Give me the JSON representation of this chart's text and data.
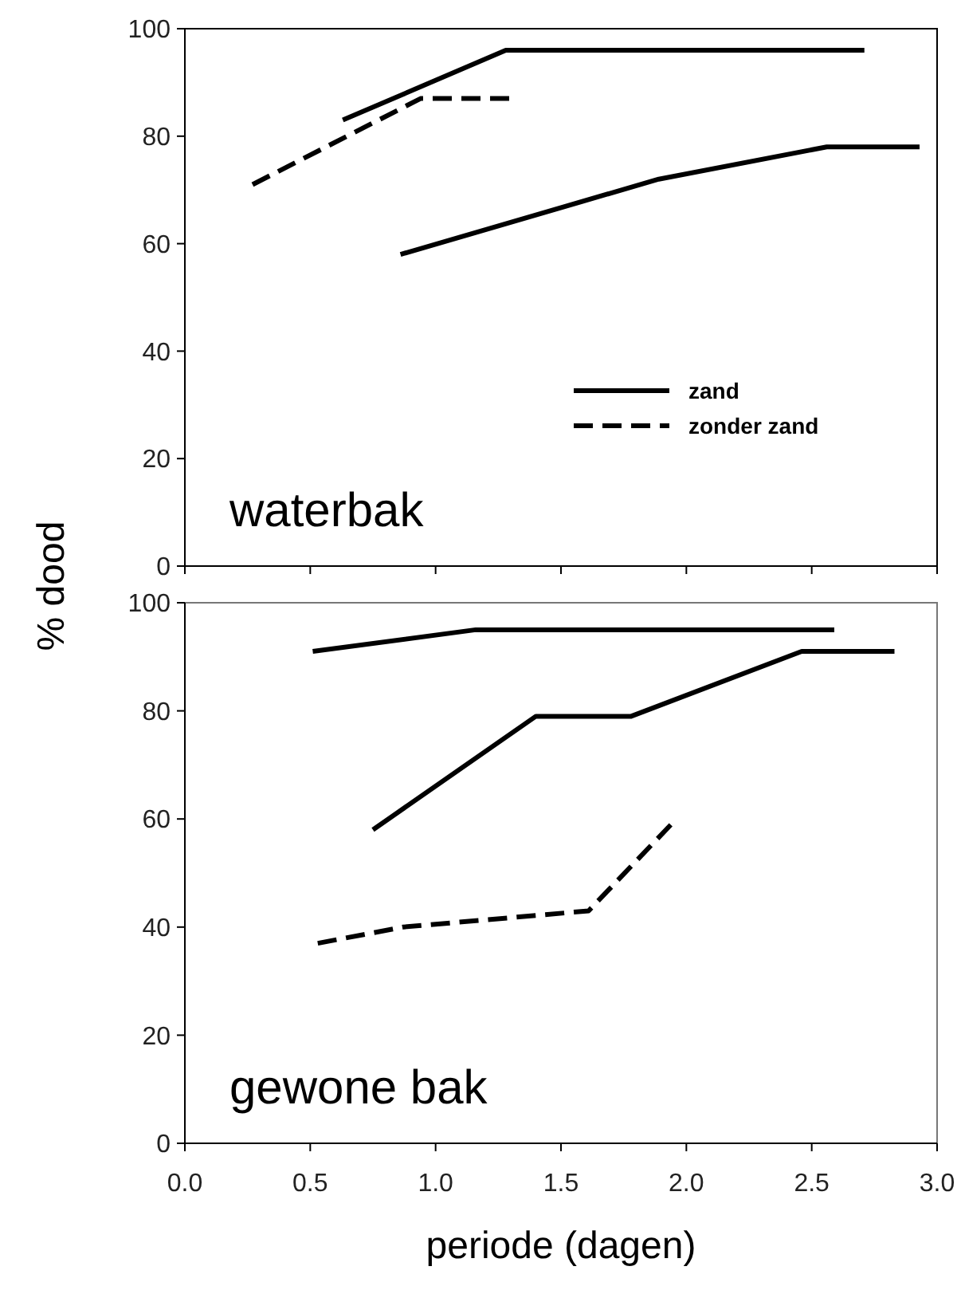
{
  "chart_data": [
    {
      "type": "line",
      "ylabel": "% dood",
      "annotations": [
        "waterbak"
      ],
      "xlim": [
        0,
        3
      ],
      "xticks": [
        {
          "value": 0,
          "label": null
        },
        {
          "value": 0.5,
          "label": null
        },
        {
          "value": 1,
          "label": null
        },
        {
          "value": 1.5,
          "label": null
        },
        {
          "value": 2,
          "label": null
        },
        {
          "value": 2.5,
          "label": null
        },
        {
          "value": 3,
          "label": null
        }
      ],
      "ylim": [
        0,
        100
      ],
      "yticks": [
        0,
        20,
        40,
        60,
        80,
        100
      ],
      "tick_labels": "y",
      "legend": "right",
      "grid": false,
      "marker": "none",
      "series": [
        {
          "name": "zand",
          "color": "#000000",
          "line_style": "solid",
          "x": [
            0.63,
            1.28,
            2.71
          ],
          "values": [
            83,
            96,
            96
          ]
        },
        {
          "color": "#000000",
          "line_style": "solid",
          "x": [
            0.86,
            1.89,
            2.56,
            2.93
          ],
          "values": [
            58,
            72,
            78,
            78
          ]
        },
        {
          "name": "zonder zand",
          "color": "#000000",
          "line_style": "dashed",
          "x": [
            0.27,
            0.94,
            1.3
          ],
          "values": [
            71,
            87,
            87
          ]
        }
      ]
    },
    {
      "type": "line",
      "xlabel": "periode (dagen)",
      "annotations": [
        "gewone bak"
      ],
      "xlim": [
        0,
        3
      ],
      "xticks": [
        {
          "value": 0,
          "label": "0.0"
        },
        {
          "value": 0.5,
          "label": "0.5"
        },
        {
          "value": 1,
          "label": "1.0"
        },
        {
          "value": 1.5,
          "label": "1.5"
        },
        {
          "value": 2,
          "label": "2.0"
        },
        {
          "value": 2.5,
          "label": "2.5"
        },
        {
          "value": 3,
          "label": "3.0"
        }
      ],
      "ylim": [
        0,
        100
      ],
      "yticks": [
        0,
        20,
        40,
        60,
        80,
        100
      ],
      "legend": false,
      "grid": false,
      "marker": "none",
      "series": [
        {
          "color": "#000000",
          "line_style": "solid",
          "x": [
            0.51,
            1.16,
            2.59
          ],
          "values": [
            91,
            95,
            95
          ]
        },
        {
          "color": "#000000",
          "line_style": "solid",
          "x": [
            0.75,
            1.4,
            1.78,
            2.46,
            2.83
          ],
          "values": [
            58,
            79,
            79,
            91,
            91
          ]
        },
        {
          "color": "#000000",
          "line_style": "dashed",
          "x": [
            0.53,
            0.87,
            1.61,
            1.96
          ],
          "values": [
            37,
            40,
            43,
            60
          ]
        }
      ]
    }
  ]
}
